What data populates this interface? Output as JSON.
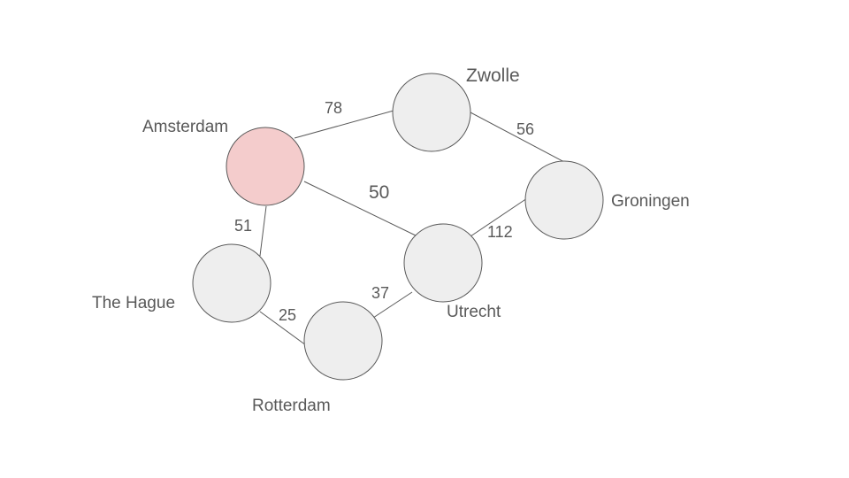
{
  "colors": {
    "node_fill": "#eeeeee",
    "node_stroke": "#595959",
    "highlight_fill": "#f4cccc",
    "highlight_stroke": "#cc0000",
    "edge": "#595959",
    "text": "#595959"
  },
  "graph": {
    "nodes": [
      {
        "id": "amsterdam",
        "label": "Amsterdam",
        "highlighted": true
      },
      {
        "id": "zwolle",
        "label": "Zwolle",
        "highlighted": false
      },
      {
        "id": "groningen",
        "label": "Groningen",
        "highlighted": false
      },
      {
        "id": "utrecht",
        "label": "Utrecht",
        "highlighted": false
      },
      {
        "id": "the-hague",
        "label": "The Hague",
        "highlighted": false
      },
      {
        "id": "rotterdam",
        "label": "Rotterdam",
        "highlighted": false
      }
    ],
    "edges": [
      {
        "id": "amsterdam-zwolle",
        "from": "Amsterdam",
        "to": "Zwolle",
        "weight": "78"
      },
      {
        "id": "zwolle-groningen",
        "from": "Zwolle",
        "to": "Groningen",
        "weight": "56"
      },
      {
        "id": "amsterdam-utrecht",
        "from": "Amsterdam",
        "to": "Utrecht",
        "weight": "50"
      },
      {
        "id": "utrecht-groningen",
        "from": "Utrecht",
        "to": "Groningen",
        "weight": "112"
      },
      {
        "id": "amsterdam-the-hague",
        "from": "Amsterdam",
        "to": "The Hague",
        "weight": "51"
      },
      {
        "id": "the-hague-rotterdam",
        "from": "The Hague",
        "to": "Rotterdam",
        "weight": "25"
      },
      {
        "id": "rotterdam-utrecht",
        "from": "Rotterdam",
        "to": "Utrecht",
        "weight": "37"
      }
    ]
  }
}
